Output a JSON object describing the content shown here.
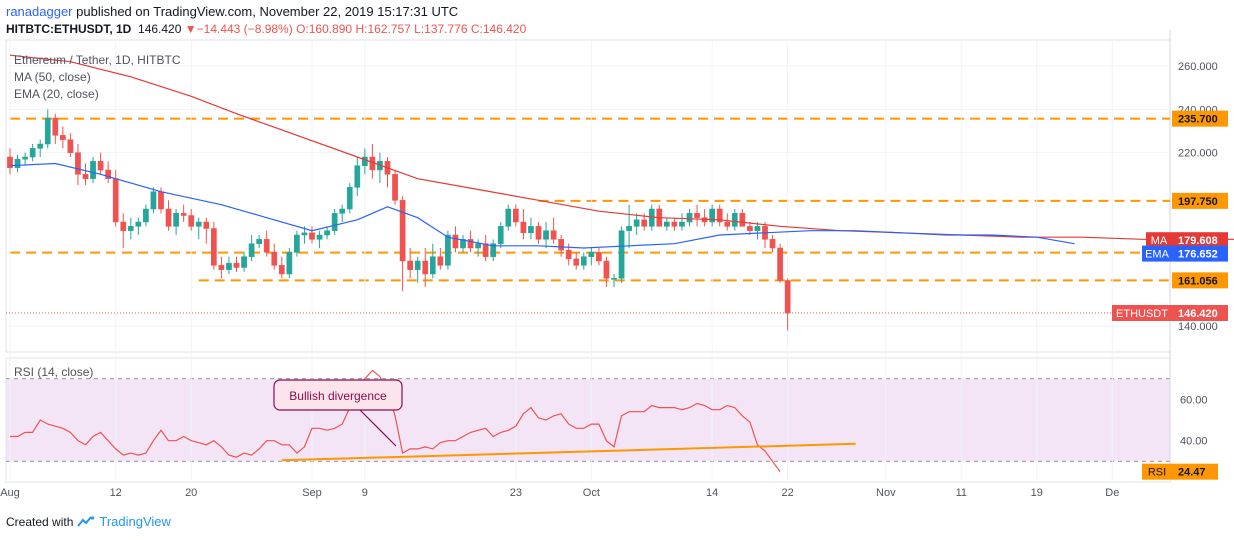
{
  "header": {
    "user": "ranadagger",
    "published_text": "published on TradingView.com, November 22, 2019 15:17:31 UTC",
    "symbol_line": "HITBTC:ETHUSDT, 1D",
    "last": "146.420",
    "change": "−14.443 (−8.98%)",
    "ohlc": "O:160.890 H:162.757 L:137.776 C:146.420"
  },
  "legend": {
    "title": "Ethereum / Tether, 1D, HITBTC",
    "ma": "MA (50, close)",
    "ema": "EMA (20, close)",
    "rsi": "RSI (14, close)"
  },
  "footer": {
    "created_with": "Created with",
    "brand": "TradingView"
  },
  "annotation": {
    "text": "Bullish divergence"
  },
  "colors": {
    "up": "#26a69a",
    "down": "#ef5350",
    "ma": "#e53935",
    "ema": "#2962ff",
    "level": "#ff9800",
    "rsi_line": "#ef5350",
    "rsi_bg": "#f3e5f5",
    "trend": "#ff9800"
  },
  "chart_data": [
    {
      "type": "candlestick",
      "title": "Ethereum / Tether, 1D, HITBTC",
      "ylim": [
        128,
        272
      ],
      "yticks": [
        "140.000",
        "220.000",
        "240.000",
        "260.000"
      ],
      "xticks": [
        "Aug",
        "12",
        "20",
        "Sep",
        "9",
        "23",
        "Oct",
        "14",
        "22",
        "Nov",
        "11",
        "19",
        "De"
      ],
      "horizontal_levels": [
        235.7,
        197.75,
        173.841,
        161.056
      ],
      "level_labels": [
        "235.700",
        "197.750",
        "173.841",
        "161.056"
      ],
      "price_labels": {
        "ma": "179.608",
        "ema": "176.652",
        "last": "146.420"
      },
      "price_label_names": {
        "ma": "MA",
        "ema": "EMA",
        "last": "ETHUSDT"
      },
      "ohlc": [
        [
          218,
          222,
          210,
          213
        ],
        [
          213,
          219,
          211,
          217
        ],
        [
          217,
          220,
          214,
          218
        ],
        [
          218,
          224,
          216,
          222
        ],
        [
          222,
          226,
          218,
          224
        ],
        [
          224,
          240,
          222,
          236
        ],
        [
          236,
          238,
          224,
          228
        ],
        [
          228,
          232,
          222,
          226
        ],
        [
          226,
          229,
          218,
          220
        ],
        [
          220,
          224,
          205,
          210
        ],
        [
          210,
          215,
          205,
          208
        ],
        [
          208,
          218,
          206,
          216
        ],
        [
          216,
          220,
          210,
          212
        ],
        [
          212,
          216,
          206,
          208
        ],
        [
          208,
          212,
          186,
          188
        ],
        [
          188,
          192,
          176,
          184
        ],
        [
          184,
          190,
          180,
          186
        ],
        [
          186,
          190,
          182,
          188
        ],
        [
          188,
          196,
          186,
          194
        ],
        [
          194,
          204,
          192,
          202
        ],
        [
          202,
          204,
          192,
          194
        ],
        [
          194,
          198,
          184,
          186
        ],
        [
          186,
          194,
          182,
          192
        ],
        [
          192,
          196,
          188,
          191
        ],
        [
          191,
          194,
          184,
          186
        ],
        [
          186,
          190,
          180,
          188
        ],
        [
          188,
          190,
          178,
          185
        ],
        [
          185,
          188,
          166,
          168
        ],
        [
          168,
          172,
          162,
          166
        ],
        [
          166,
          172,
          164,
          169
        ],
        [
          169,
          172,
          165,
          167
        ],
        [
          167,
          174,
          165,
          172
        ],
        [
          172,
          182,
          170,
          178
        ],
        [
          178,
          182,
          176,
          180
        ],
        [
          180,
          184,
          172,
          174
        ],
        [
          174,
          178,
          166,
          168
        ],
        [
          168,
          172,
          162,
          164
        ],
        [
          164,
          176,
          162,
          174
        ],
        [
          174,
          184,
          172,
          182
        ],
        [
          182,
          186,
          178,
          183
        ],
        [
          183,
          186,
          178,
          180
        ],
        [
          180,
          184,
          176,
          182
        ],
        [
          182,
          186,
          180,
          184
        ],
        [
          184,
          194,
          182,
          192
        ],
        [
          192,
          196,
          188,
          194
        ],
        [
          194,
          206,
          192,
          204
        ],
        [
          204,
          218,
          200,
          214
        ],
        [
          214,
          222,
          210,
          218
        ],
        [
          218,
          224,
          208,
          212
        ],
        [
          212,
          220,
          206,
          216
        ],
        [
          216,
          218,
          204,
          210
        ],
        [
          210,
          212,
          196,
          198
        ],
        [
          198,
          200,
          156,
          170
        ],
        [
          170,
          176,
          162,
          166
        ],
        [
          166,
          172,
          160,
          170
        ],
        [
          170,
          176,
          158,
          164
        ],
        [
          164,
          178,
          162,
          172
        ],
        [
          172,
          176,
          166,
          168
        ],
        [
          168,
          184,
          166,
          182
        ],
        [
          182,
          186,
          174,
          176
        ],
        [
          176,
          182,
          174,
          180
        ],
        [
          180,
          184,
          174,
          176
        ],
        [
          176,
          180,
          172,
          178
        ],
        [
          178,
          182,
          170,
          172
        ],
        [
          172,
          180,
          170,
          178
        ],
        [
          178,
          188,
          176,
          186
        ],
        [
          186,
          196,
          184,
          194
        ],
        [
          194,
          196,
          186,
          188
        ],
        [
          188,
          194,
          180,
          183
        ],
        [
          183,
          190,
          180,
          186
        ],
        [
          186,
          188,
          178,
          180
        ],
        [
          180,
          188,
          176,
          184
        ],
        [
          184,
          190,
          178,
          180
        ],
        [
          180,
          182,
          172,
          175
        ],
        [
          175,
          178,
          168,
          171
        ],
        [
          171,
          174,
          166,
          168
        ],
        [
          168,
          174,
          166,
          172
        ],
        [
          172,
          176,
          168,
          174
        ],
        [
          174,
          176,
          168,
          170
        ],
        [
          170,
          172,
          158,
          162
        ],
        [
          162,
          164,
          158,
          162
        ],
        [
          162,
          186,
          160,
          184
        ],
        [
          184,
          196,
          176,
          186
        ],
        [
          186,
          192,
          182,
          189
        ],
        [
          189,
          192,
          184,
          186
        ],
        [
          186,
          196,
          184,
          194
        ],
        [
          194,
          196,
          186,
          186
        ],
        [
          186,
          190,
          184,
          188
        ],
        [
          188,
          190,
          184,
          186
        ],
        [
          186,
          192,
          184,
          188
        ],
        [
          188,
          194,
          186,
          192
        ],
        [
          192,
          196,
          186,
          190
        ],
        [
          190,
          194,
          186,
          188
        ],
        [
          188,
          196,
          186,
          194
        ],
        [
          194,
          196,
          186,
          188
        ],
        [
          188,
          192,
          184,
          186
        ],
        [
          186,
          194,
          184,
          192
        ],
        [
          192,
          194,
          186,
          186
        ],
        [
          186,
          188,
          182,
          184
        ],
        [
          184,
          188,
          180,
          186
        ],
        [
          186,
          188,
          176,
          180
        ],
        [
          180,
          182,
          174,
          176
        ],
        [
          176,
          178,
          160,
          161
        ],
        [
          161,
          162,
          138,
          146
        ]
      ],
      "ma50": [
        [
          0,
          265
        ],
        [
          8,
          262
        ],
        [
          16,
          255
        ],
        [
          24,
          246
        ],
        [
          30,
          238
        ],
        [
          38,
          228
        ],
        [
          46,
          218
        ],
        [
          54,
          208
        ],
        [
          62,
          203
        ],
        [
          70,
          198
        ],
        [
          78,
          193
        ],
        [
          86,
          190
        ],
        [
          94,
          189
        ],
        [
          102,
          186
        ],
        [
          110,
          184
        ],
        [
          118,
          183
        ],
        [
          126,
          182
        ],
        [
          134,
          181
        ],
        [
          142,
          181
        ],
        [
          150,
          180
        ],
        [
          160,
          180
        ],
        [
          170,
          180
        ],
        [
          180,
          179
        ],
        [
          190,
          179
        ],
        [
          200,
          178
        ],
        [
          208,
          179
        ],
        [
          216,
          179
        ]
      ],
      "ema20": [
        [
          0,
          214
        ],
        [
          6,
          215
        ],
        [
          12,
          210
        ],
        [
          20,
          202
        ],
        [
          28,
          196
        ],
        [
          34,
          190
        ],
        [
          40,
          184
        ],
        [
          46,
          189
        ],
        [
          50,
          195
        ],
        [
          54,
          190
        ],
        [
          58,
          181
        ],
        [
          64,
          177
        ],
        [
          70,
          177
        ],
        [
          76,
          176
        ],
        [
          82,
          177
        ],
        [
          88,
          178
        ],
        [
          94,
          182
        ],
        [
          100,
          183
        ],
        [
          106,
          184
        ],
        [
          112,
          184
        ],
        [
          118,
          183
        ],
        [
          124,
          182
        ],
        [
          130,
          182
        ],
        [
          136,
          181
        ],
        [
          141,
          178
        ]
      ]
    },
    {
      "type": "line",
      "title": "RSI (14, close)",
      "ylim": [
        20,
        80
      ],
      "yticks": [
        "40.00",
        "60.00"
      ],
      "bands": [
        30,
        70
      ],
      "last_label": {
        "name": "RSI",
        "value": "24.47"
      },
      "values": [
        42,
        42,
        44,
        44,
        50,
        48,
        47,
        46,
        44,
        40,
        38,
        42,
        44,
        40,
        36,
        33,
        34,
        33,
        34,
        40,
        45,
        40,
        40,
        42,
        40,
        39,
        38,
        40,
        37,
        33,
        32,
        34,
        33,
        36,
        40,
        40,
        38,
        38,
        34,
        37,
        46,
        46,
        45,
        46,
        48,
        56,
        63,
        70,
        74,
        71,
        64,
        52,
        34,
        36,
        36,
        37,
        36,
        39,
        40,
        40,
        42,
        44,
        45,
        46,
        42,
        44,
        45,
        47,
        53,
        56,
        51,
        50,
        52,
        53,
        48,
        46,
        46,
        48,
        48,
        40,
        37,
        52,
        54,
        54,
        54,
        57,
        56,
        56,
        56,
        55,
        56,
        58,
        57,
        55,
        55,
        57,
        56,
        52,
        49,
        38,
        35,
        30,
        25
      ],
      "trendline": [
        [
          0,
          30.5
        ],
        [
          112,
          38.5
        ]
      ]
    }
  ]
}
